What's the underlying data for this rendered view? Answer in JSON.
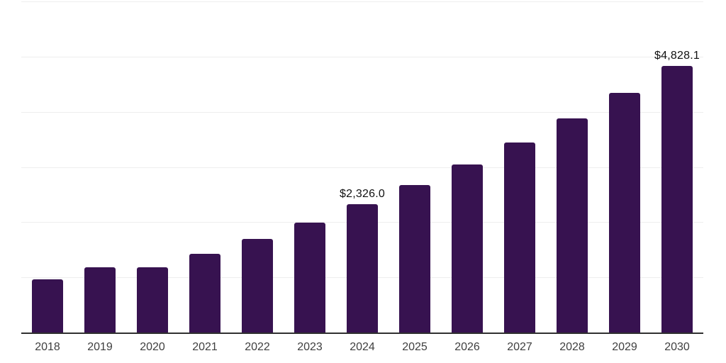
{
  "chart_data": {
    "type": "bar",
    "title": "",
    "xlabel": "",
    "ylabel": "",
    "categories": [
      "2018",
      "2019",
      "2020",
      "2021",
      "2022",
      "2023",
      "2024",
      "2025",
      "2026",
      "2027",
      "2028",
      "2029",
      "2030"
    ],
    "values": [
      970,
      1185,
      1185,
      1425,
      1700,
      1990,
      2326.0,
      2670,
      3045,
      3440,
      3875,
      4340,
      4828.1
    ],
    "value_labels": {
      "2024": "$2,326.0",
      "2030": "$4,828.1"
    },
    "ylim": [
      0,
      6000
    ],
    "gridline_step": 1000,
    "grid": "horizontal",
    "legend": "none",
    "y_axis_labels_visible": false,
    "colors": {
      "bar": "#371250",
      "gridline": "#eeeeee",
      "axis_line": "#303030",
      "tick_label": "#3f3f3f",
      "value_label": "#111111",
      "background": "#ffffff"
    }
  }
}
